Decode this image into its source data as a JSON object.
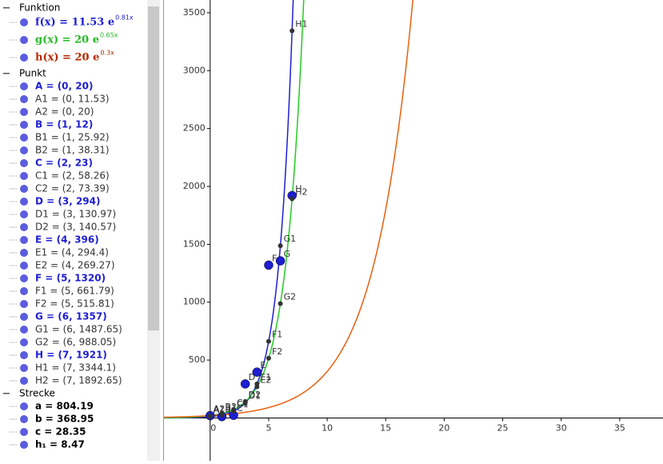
{
  "algebra": {
    "groups": [
      {
        "title": "Funktion",
        "items": [
          {
            "text": "f(x) = 11.53 e",
            "sup": "0.81x",
            "color": "#1e1ed2"
          },
          {
            "text": "g(x) = 20 e",
            "sup": "0.65x",
            "color": "#22bb22"
          },
          {
            "text": "h(x) = 20 e",
            "sup": "0.3x",
            "color": "#b42a00"
          }
        ]
      },
      {
        "title": "Punkt",
        "items": [
          {
            "text": "A = (0, 20)",
            "color": "#1e1ed2"
          },
          {
            "text": "A1 = (0, 11.53)",
            "color": "#333"
          },
          {
            "text": "A2 = (0, 20)",
            "color": "#333"
          },
          {
            "text": "B = (1, 12)",
            "color": "#1e1ed2"
          },
          {
            "text": "B1 = (1, 25.92)",
            "color": "#333"
          },
          {
            "text": "B2 = (1, 38.31)",
            "color": "#333"
          },
          {
            "text": "C = (2, 23)",
            "color": "#1e1ed2"
          },
          {
            "text": "C1 = (2, 58.26)",
            "color": "#333"
          },
          {
            "text": "C2 = (2, 73.39)",
            "color": "#333"
          },
          {
            "text": "D = (3, 294)",
            "color": "#1e1ed2"
          },
          {
            "text": "D1 = (3, 130.97)",
            "color": "#333"
          },
          {
            "text": "D2 = (3, 140.57)",
            "color": "#333"
          },
          {
            "text": "E = (4, 396)",
            "color": "#1e1ed2"
          },
          {
            "text": "E1 = (4, 294.4)",
            "color": "#333"
          },
          {
            "text": "E2 = (4, 269.27)",
            "color": "#333"
          },
          {
            "text": "F = (5, 1320)",
            "color": "#1e1ed2"
          },
          {
            "text": "F1 = (5, 661.79)",
            "color": "#333"
          },
          {
            "text": "F2 = (5, 515.81)",
            "color": "#333"
          },
          {
            "text": "G = (6, 1357)",
            "color": "#1e1ed2"
          },
          {
            "text": "G1 = (6, 1487.65)",
            "color": "#333"
          },
          {
            "text": "G2 = (6, 988.05)",
            "color": "#333"
          },
          {
            "text": "H = (7, 1921)",
            "color": "#1e1ed2"
          },
          {
            "text": "H1 = (7, 3344.1)",
            "color": "#333"
          },
          {
            "text": "H2 = (7, 1892.65)",
            "color": "#333"
          }
        ]
      },
      {
        "title": "Strecke",
        "items": [
          {
            "text": "a = 804.19",
            "color": "#000"
          },
          {
            "text": "b = 368.95",
            "color": "#000"
          },
          {
            "text": "c = 28.35",
            "color": "#000"
          },
          {
            "text": "h₁ = 8.47",
            "color": "#000"
          }
        ]
      }
    ]
  },
  "graph": {
    "xlim": [
      -3.95,
      38.7
    ],
    "ylim": [
      -370,
      3610
    ],
    "xticks": [
      0,
      5,
      10,
      15,
      20,
      25,
      30,
      35
    ],
    "yticks": [
      500,
      1000,
      1500,
      2000,
      2500,
      3000,
      3500
    ],
    "functions": [
      {
        "a": 11.53,
        "k": 0.81,
        "color": "#1e1ed2"
      },
      {
        "a": 20,
        "k": 0.65,
        "color": "#22cc22"
      },
      {
        "a": 20,
        "k": 0.3,
        "color": "#e86010"
      }
    ],
    "points": [
      {
        "name": "A",
        "x": 0,
        "y": 20,
        "free": true
      },
      {
        "name": "A1",
        "x": 0,
        "y": 11.53
      },
      {
        "name": "A2",
        "x": 0,
        "y": 20
      },
      {
        "name": "B",
        "x": 1,
        "y": 12,
        "free": true
      },
      {
        "name": "B1",
        "x": 1,
        "y": 25.92
      },
      {
        "name": "B2",
        "x": 1,
        "y": 38.31
      },
      {
        "name": "C",
        "x": 2,
        "y": 23,
        "free": true
      },
      {
        "name": "C1",
        "x": 2,
        "y": 58.26
      },
      {
        "name": "C2",
        "x": 2,
        "y": 73.39
      },
      {
        "name": "D",
        "x": 3,
        "y": 294,
        "free": true
      },
      {
        "name": "D1",
        "x": 3,
        "y": 130.97
      },
      {
        "name": "D2",
        "x": 3,
        "y": 140.57
      },
      {
        "name": "E",
        "x": 4,
        "y": 396,
        "free": true
      },
      {
        "name": "E1",
        "x": 4,
        "y": 294.4
      },
      {
        "name": "E2",
        "x": 4,
        "y": 269.27
      },
      {
        "name": "F",
        "x": 5,
        "y": 1320,
        "free": true
      },
      {
        "name": "F1",
        "x": 5,
        "y": 661.79
      },
      {
        "name": "F2",
        "x": 5,
        "y": 515.81
      },
      {
        "name": "G",
        "x": 6,
        "y": 1357,
        "free": true
      },
      {
        "name": "G1",
        "x": 6,
        "y": 1487.65
      },
      {
        "name": "G2",
        "x": 6,
        "y": 988.05
      },
      {
        "name": "H",
        "x": 7,
        "y": 1921,
        "free": true
      },
      {
        "name": "H1",
        "x": 7,
        "y": 3344.1
      },
      {
        "name": "H2",
        "x": 7,
        "y": 1892.65
      }
    ]
  }
}
